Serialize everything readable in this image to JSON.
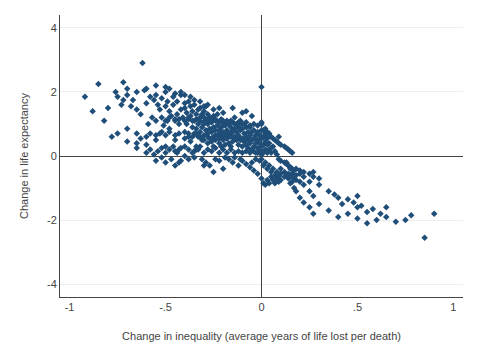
{
  "chart_data": {
    "type": "scatter",
    "xlabel": "Change in inequality (average years of life lost per death)",
    "ylabel": "Change in life expectancy",
    "xlim": [
      -1.05,
      1.05
    ],
    "ylim": [
      -4.4,
      4.4
    ],
    "xticks": [
      -1,
      {
        "value": -0.5,
        "label": "-.5"
      },
      0,
      {
        "value": 0.5,
        "label": ".5"
      },
      1
    ],
    "yticks": [
      -4,
      -2,
      0,
      2,
      4
    ],
    "grid": "y",
    "marker": "diamond",
    "color": "#1F4E79",
    "x": [
      -0.92,
      -0.88,
      -0.85,
      -0.82,
      -0.8,
      -0.78,
      -0.76,
      -0.75,
      -0.73,
      -0.72,
      -0.7,
      -0.7,
      -0.68,
      -0.67,
      -0.65,
      -0.65,
      -0.63,
      -0.62,
      -0.61,
      -0.6,
      -0.59,
      -0.58,
      -0.57,
      -0.56,
      -0.55,
      -0.54,
      -0.53,
      -0.53,
      -0.52,
      -0.51,
      -0.5,
      -0.5,
      -0.49,
      -0.49,
      -0.48,
      -0.48,
      -0.47,
      -0.46,
      -0.46,
      -0.45,
      -0.45,
      -0.44,
      -0.44,
      -0.43,
      -0.43,
      -0.42,
      -0.42,
      -0.41,
      -0.4,
      -0.4,
      -0.4,
      -0.39,
      -0.39,
      -0.38,
      -0.38,
      -0.38,
      -0.37,
      -0.37,
      -0.37,
      -0.36,
      -0.36,
      -0.35,
      -0.35,
      -0.35,
      -0.34,
      -0.34,
      -0.34,
      -0.33,
      -0.33,
      -0.33,
      -0.32,
      -0.32,
      -0.32,
      -0.31,
      -0.31,
      -0.31,
      -0.3,
      -0.3,
      -0.3,
      -0.29,
      -0.29,
      -0.29,
      -0.28,
      -0.28,
      -0.28,
      -0.28,
      -0.27,
      -0.27,
      -0.27,
      -0.26,
      -0.26,
      -0.26,
      -0.25,
      -0.25,
      -0.25,
      -0.25,
      -0.24,
      -0.24,
      -0.24,
      -0.23,
      -0.23,
      -0.23,
      -0.22,
      -0.22,
      -0.22,
      -0.21,
      -0.21,
      -0.21,
      -0.21,
      -0.2,
      -0.2,
      -0.2,
      -0.19,
      -0.19,
      -0.19,
      -0.18,
      -0.18,
      -0.18,
      -0.17,
      -0.17,
      -0.17,
      -0.16,
      -0.16,
      -0.16,
      -0.15,
      -0.15,
      -0.15,
      -0.14,
      -0.14,
      -0.14,
      -0.13,
      -0.13,
      -0.13,
      -0.12,
      -0.12,
      -0.12,
      -0.11,
      -0.11,
      -0.11,
      -0.1,
      -0.1,
      -0.1,
      -0.09,
      -0.09,
      -0.09,
      -0.08,
      -0.08,
      -0.08,
      -0.07,
      -0.07,
      -0.07,
      -0.06,
      -0.06,
      -0.06,
      -0.05,
      -0.05,
      -0.05,
      -0.05,
      -0.04,
      -0.04,
      -0.04,
      -0.03,
      -0.03,
      -0.03,
      -0.03,
      -0.02,
      -0.02,
      -0.02,
      -0.01,
      -0.01,
      -0.01,
      -0.01,
      0.0,
      0.01,
      0.01,
      0.01,
      0.01,
      0.02,
      0.02,
      0.02,
      0.03,
      0.03,
      0.03,
      0.04,
      0.04,
      0.05,
      0.05,
      0.06,
      0.06,
      0.07,
      0.07,
      0.08,
      0.08,
      0.09,
      0.09,
      0.1,
      0.1,
      0.12,
      0.13,
      0.13,
      0.14,
      0.15,
      0.15,
      0.16,
      0.17,
      0.17,
      0.18,
      0.18,
      0.2,
      0.2,
      0.22,
      0.22,
      0.25,
      0.25,
      0.27,
      0.27,
      0.3,
      0.35,
      0.4,
      0.45,
      0.5,
      0.5,
      0.55,
      0.6,
      0.65,
      0.7,
      0.75,
      0.78,
      0.85,
      0.9,
      -0.3,
      -0.25,
      -0.2,
      -0.15,
      -0.12,
      -0.1,
      -0.08,
      -0.06,
      -0.04,
      -0.02,
      0.0,
      0.0,
      0.01,
      0.02,
      0.03,
      0.04,
      0.05,
      -0.35,
      -0.4,
      -0.45,
      -0.5,
      -0.55,
      -0.6,
      -0.65,
      -0.7,
      -0.75,
      0.0,
      0.0,
      0.0,
      0.0,
      -0.1,
      -0.15,
      -0.2,
      -0.22,
      -0.25,
      -0.28,
      -0.3,
      -0.32,
      -0.35,
      -0.37,
      -0.4,
      -0.42,
      -0.45,
      -0.48,
      -0.5,
      -0.55,
      -0.6,
      -0.65,
      -0.7,
      -0.72,
      -0.05,
      -0.08,
      -0.12,
      -0.15,
      -0.18,
      -0.2,
      -0.22,
      -0.25,
      -0.28,
      -0.3,
      0.0,
      0.02,
      -0.35,
      -0.38,
      -0.42,
      -0.45,
      -0.33,
      -0.31,
      -0.29,
      -0.27,
      -0.24,
      -0.22,
      -0.19,
      -0.17,
      -0.14,
      -0.11,
      -0.43,
      -0.47,
      -0.5,
      -0.52,
      -0.55,
      0.02,
      0.03,
      0.04,
      0.05,
      0.06,
      0.07,
      0.08,
      0.09,
      0.1,
      0.12,
      0.14,
      0.15,
      0.16,
      0.18,
      0.2,
      0.22,
      0.25,
      0.27,
      0.3,
      0.35,
      0.38,
      0.4,
      0.42,
      0.45,
      0.48,
      0.5,
      0.52,
      0.55,
      0.58,
      0.62,
      0.65,
      -0.6,
      -0.58,
      -0.56,
      -0.54,
      -0.52,
      -0.5,
      -0.48,
      -0.46,
      -0.44,
      -0.42,
      -0.4,
      -0.38,
      -0.36,
      -0.34,
      -0.32,
      -0.3,
      -0.28,
      -0.26,
      -0.24,
      -0.22,
      -0.2,
      -0.18,
      -0.16,
      -0.14,
      -0.12,
      -0.1,
      -0.08,
      -0.06,
      -0.04,
      -0.02,
      0.0,
      -0.65,
      -0.63,
      -0.6,
      -0.58,
      -0.55,
      -0.52,
      -0.5,
      -0.48,
      -0.45,
      -0.43,
      -0.4,
      -0.38,
      -0.36,
      -0.34,
      -0.32,
      -0.3,
      -0.28,
      -0.26,
      -0.24,
      -0.22,
      -0.2,
      -0.18,
      -0.16,
      -0.14,
      -0.12,
      -0.1,
      -0.08,
      -0.06,
      -0.04,
      -0.02,
      -0.55,
      -0.52,
      -0.5,
      -0.48,
      -0.45,
      -0.43,
      -0.4,
      -0.38,
      -0.36,
      -0.34,
      -0.32,
      -0.3,
      -0.28,
      -0.26,
      -0.24,
      -0.22,
      -0.2,
      -0.18,
      -0.16,
      -0.14,
      -0.12,
      -0.1,
      -0.08,
      -0.06,
      -0.04,
      -0.02,
      0.0,
      0.01,
      0.02,
      0.03,
      0.04,
      0.05,
      0.06,
      0.07,
      0.08,
      0.09,
      0.1,
      0.12,
      0.13,
      0.14,
      0.15,
      0.16,
      0.09,
      0.1,
      0.12,
      0.13,
      0.14,
      0.15,
      0.16,
      0.17,
      0.18,
      0.2,
      0.22,
      0.25,
      0.27,
      0.3
    ],
    "values": [
      1.85,
      1.4,
      2.25,
      1.1,
      1.5,
      0.6,
      2.0,
      1.85,
      1.6,
      2.3,
      0.85,
      2.1,
      1.55,
      1.75,
      1.45,
      0.4,
      1.3,
      2.9,
      2.05,
      1.65,
      1.0,
      1.85,
      1.2,
      1.75,
      1.9,
      1.6,
      0.7,
      1.45,
      1.8,
      0.95,
      1.55,
      2.15,
      1.1,
      1.7,
      0.85,
      1.4,
      1.25,
      1.6,
      1.85,
      0.5,
      1.15,
      1.3,
      1.7,
      0.2,
      1.0,
      1.45,
      1.9,
      1.2,
      0.75,
      1.5,
      1.65,
      1.0,
      1.35,
      0.6,
      1.15,
      1.7,
      0.45,
      1.25,
      1.55,
      0.9,
      1.4,
      0.7,
      1.1,
      1.6,
      0.3,
      0.85,
      1.3,
      0.6,
      1.0,
      1.45,
      0.75,
      1.2,
      1.5,
      0.5,
      0.9,
      1.3,
      0.65,
      1.05,
      1.4,
      0.8,
      1.15,
      1.55,
      0.4,
      0.7,
      1.0,
      1.3,
      0.55,
      0.85,
      1.2,
      0.45,
      0.75,
      1.1,
      0.3,
      0.6,
      0.9,
      1.25,
      0.5,
      0.8,
      1.1,
      0.65,
      0.95,
      1.3,
      0.4,
      0.7,
      1.05,
      0.3,
      0.6,
      0.9,
      1.15,
      0.5,
      0.75,
      1.05,
      0.35,
      0.65,
      0.95,
      0.55,
      0.8,
      1.1,
      0.4,
      0.7,
      1.0,
      0.3,
      0.6,
      0.9,
      0.45,
      0.75,
      1.05,
      0.6,
      0.85,
      1.2,
      0.5,
      0.75,
      1.0,
      0.35,
      0.65,
      0.9,
      0.5,
      0.8,
      1.1,
      0.3,
      0.55,
      0.85,
      0.45,
      0.7,
      1.0,
      0.35,
      0.6,
      0.9,
      0.25,
      0.5,
      0.75,
      0.4,
      0.65,
      0.9,
      0.2,
      0.5,
      0.75,
      -0.2,
      0.3,
      0.55,
      0.8,
      0.1,
      0.4,
      0.65,
      -0.1,
      0.25,
      0.5,
      0.75,
      0.15,
      0.4,
      0.65,
      -0.15,
      2.15,
      0.1,
      0.35,
      0.6,
      -0.3,
      0.2,
      0.45,
      -0.2,
      0.1,
      0.35,
      -0.4,
      0.2,
      -0.3,
      0.1,
      -0.5,
      0.3,
      -0.4,
      0.15,
      -0.6,
      0.05,
      -0.5,
      -0.65,
      0.6,
      -0.4,
      -0.75,
      -0.5,
      -0.6,
      -0.2,
      -0.7,
      -0.4,
      -0.85,
      -0.55,
      -0.7,
      -1.0,
      -0.6,
      -1.1,
      -0.8,
      -1.3,
      -0.9,
      -1.45,
      -1.1,
      -1.6,
      -1.25,
      -1.8,
      -1.5,
      -1.7,
      -1.9,
      -1.8,
      -1.95,
      -1.6,
      -2.1,
      -2.0,
      -1.9,
      -2.05,
      -2.0,
      -1.85,
      -2.55,
      -1.8,
      -0.3,
      -0.5,
      -0.4,
      -0.2,
      -0.3,
      -0.15,
      -0.25,
      -0.35,
      -0.45,
      -0.55,
      0.05,
      -0.7,
      -0.85,
      0.65,
      0.55,
      0.4,
      0.25,
      0.15,
      0.0,
      0.15,
      0.3,
      0.5,
      0.35,
      0.25,
      0.45,
      0.7,
      0.3,
      -0.1,
      1.05,
      0.8,
      1.35,
      1.5,
      1.35,
      1.5,
      1.45,
      1.6,
      1.55,
      1.7,
      1.75,
      1.85,
      1.9,
      2.0,
      1.95,
      2.1,
      2.0,
      2.2,
      2.1,
      2.0,
      1.9,
      1.75,
      1.25,
      1.4,
      0.95,
      0.8,
      0.65,
      0.95,
      0.8,
      1.15,
      1.05,
      1.2,
      0.55,
      0.85,
      -0.05,
      -0.1,
      -0.15,
      -0.3,
      0.2,
      -0.1,
      -0.2,
      -0.3,
      -0.1,
      -0.15,
      -0.05,
      -0.1,
      -0.05,
      -0.1,
      -0.2,
      -0.1,
      -0.2,
      -0.05,
      -0.15,
      -0.9,
      -0.75,
      -0.85,
      -0.65,
      -0.75,
      -0.85,
      -0.7,
      -0.8,
      -0.55,
      -0.65,
      -0.55,
      -0.65,
      -0.8,
      -0.75,
      -0.55,
      -0.65,
      -0.8,
      -0.65,
      -0.9,
      -1.1,
      -1.2,
      -1.3,
      -1.5,
      -1.35,
      -1.45,
      -1.25,
      -1.55,
      -1.75,
      -1.65,
      -1.8,
      -1.6,
      0.1,
      0.2,
      0.05,
      0.15,
      0.25,
      0.1,
      0.2,
      0.3,
      0.1,
      0.25,
      0.3,
      0.2,
      0.1,
      0.2,
      0.3,
      0.1,
      0.2,
      0.15,
      0.25,
      0.1,
      0.2,
      0.1,
      0.2,
      0.1,
      0.15,
      0.1,
      0.15,
      0.1,
      0.15,
      0.1,
      0.15,
      0.7,
      0.55,
      0.6,
      0.7,
      0.65,
      0.75,
      0.65,
      0.75,
      0.65,
      0.7,
      0.55,
      0.7,
      0.6,
      0.7,
      0.6,
      0.5,
      0.6,
      0.55,
      0.65,
      0.55,
      0.65,
      0.55,
      0.65,
      0.55,
      0.6,
      0.5,
      0.55,
      0.5,
      0.55,
      0.5,
      1.1,
      1.2,
      1.1,
      1.2,
      1.1,
      1.15,
      1.1,
      1.2,
      1.1,
      1.15,
      1.1,
      1.0,
      1.15,
      1.05,
      1.15,
      1.05,
      1.1,
      1.0,
      1.1,
      1.0,
      1.05,
      1.0,
      1.05,
      0.95,
      1.0,
      0.95,
      1.0,
      0.8,
      0.7,
      0.75,
      0.7,
      0.6,
      0.55,
      0.5,
      0.45,
      0.4,
      0.35,
      0.3,
      0.25,
      0.2,
      0.15,
      0.1,
      -0.1,
      -0.15,
      -0.2,
      -0.25,
      -0.3,
      -0.35,
      -0.4,
      -0.45,
      -0.4,
      -0.45,
      -0.5,
      -0.55,
      -0.5,
      -0.7
    ]
  }
}
